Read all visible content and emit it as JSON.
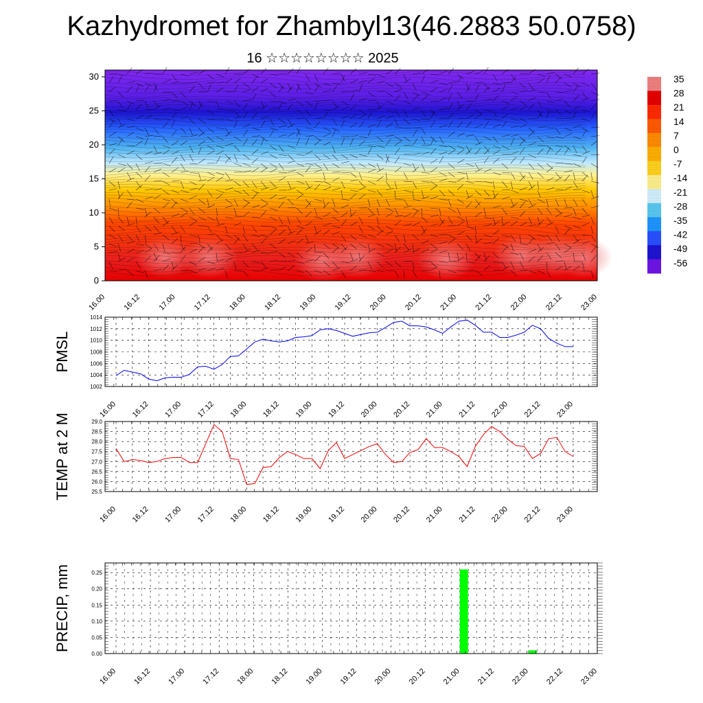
{
  "title": "Kazhydromet for Zhambyl13(46.2883 50.0758)",
  "subtitle": "16 ☆☆☆☆☆☆☆☆ 2025",
  "colors": {
    "pmsl_line": "#0000ff",
    "temp_line": "#ff0000",
    "precip_bar": "#00ff00",
    "grid": "#000000",
    "background": "#ffffff"
  },
  "chart_data": [
    {
      "type": "heatmap",
      "name": "cross-section",
      "x_ticks": [
        "16.00",
        "16.12",
        "17.00",
        "17.12",
        "18.00",
        "18.12",
        "19.00",
        "19.12",
        "20.00",
        "20.12",
        "21.00",
        "21.12",
        "22.00",
        "22.12",
        "23.00"
      ],
      "y_ticks": [
        "0",
        "5",
        "10",
        "15",
        "20",
        "25",
        "30"
      ],
      "ylim": [
        0,
        31
      ],
      "colorbar_labels": [
        "35",
        "28",
        "21",
        "14",
        "7",
        "0",
        "-7",
        "-14",
        "-21",
        "-28",
        "-35",
        "-42",
        "-49",
        "-56"
      ],
      "colorbar_colors": [
        "#f08080",
        "#e60000",
        "#ff2a00",
        "#ff5a00",
        "#ff8c00",
        "#ffb000",
        "#ffd21e",
        "#fff08c",
        "#d2f0ff",
        "#5ac8f0",
        "#1e96ff",
        "#2850ff",
        "#1e14d2",
        "#6e14e6"
      ],
      "description_bands": "temperature field with wind barbs"
    },
    {
      "type": "line",
      "name": "PMSL",
      "ylabel": "PMSL",
      "ylim": [
        1002,
        1014
      ],
      "y_ticks": [
        "1002",
        "1004",
        "1006",
        "1008",
        "1010",
        "1012",
        "1014"
      ],
      "x_ticks": [
        "16.00",
        "16.12",
        "17.00",
        "17.12",
        "18.00",
        "18.12",
        "19.00",
        "19.12",
        "20.00",
        "20.12",
        "21.00",
        "21.12",
        "22.00",
        "22.12",
        "23.00"
      ],
      "values": [
        1003.9,
        1004.8,
        1004.5,
        1004.2,
        1003.3,
        1003.0,
        1003.5,
        1003.6,
        1003.6,
        1004.1,
        1005.4,
        1005.5,
        1005.0,
        1005.8,
        1007.2,
        1007.3,
        1008.5,
        1009.7,
        1010.2,
        1009.9,
        1009.7,
        1009.9,
        1010.5,
        1010.6,
        1010.8,
        1011.8,
        1012.0,
        1011.7,
        1011.2,
        1010.7,
        1011.0,
        1011.3,
        1011.4,
        1012.2,
        1013.1,
        1013.3,
        1012.5,
        1012.5,
        1012.3,
        1011.8,
        1011.2,
        1012.3,
        1013.3,
        1013.5,
        1012.6,
        1011.4,
        1011.4,
        1010.5,
        1010.5,
        1010.9,
        1011.4,
        1012.6,
        1012.0,
        1010.3,
        1009.5,
        1008.9,
        1008.9
      ]
    },
    {
      "type": "line",
      "name": "TEMP at 2 M",
      "ylabel": "TEMP at 2 M",
      "ylim": [
        25.5,
        29.0
      ],
      "y_ticks": [
        "25.5",
        "26.0",
        "26.5",
        "27.0",
        "27.5",
        "28.0",
        "28.5",
        "29.0"
      ],
      "x_ticks": [
        "16.00",
        "16.12",
        "17.00",
        "17.12",
        "18.00",
        "18.12",
        "19.00",
        "19.12",
        "20.00",
        "20.12",
        "21.00",
        "21.12",
        "22.00",
        "22.12",
        "23.00"
      ],
      "values": [
        27.65,
        27.0,
        27.1,
        27.05,
        26.95,
        27.0,
        27.15,
        27.2,
        27.2,
        26.95,
        26.95,
        27.9,
        28.85,
        28.5,
        27.15,
        27.1,
        25.85,
        25.9,
        26.7,
        26.75,
        27.2,
        27.5,
        27.35,
        27.15,
        27.15,
        26.65,
        27.55,
        27.95,
        27.15,
        27.35,
        27.55,
        27.75,
        27.9,
        27.35,
        26.95,
        27.0,
        27.45,
        27.6,
        28.15,
        27.7,
        27.7,
        27.5,
        27.25,
        26.75,
        27.75,
        28.35,
        28.75,
        28.5,
        28.1,
        27.8,
        27.75,
        27.15,
        27.4,
        28.15,
        28.2,
        27.5,
        27.25
      ]
    },
    {
      "type": "bar",
      "name": "PRECIP, mm",
      "ylabel": "PRECIP, mm",
      "ylim": [
        0,
        0.28
      ],
      "y_ticks": [
        "0.00",
        "0.05",
        "0.10",
        "0.15",
        "0.20",
        "0.25"
      ],
      "x_ticks": [
        "16.00",
        "16.12",
        "17.00",
        "17.12",
        "18.00",
        "18.12",
        "19.00",
        "19.12",
        "20.00",
        "20.12",
        "21.00",
        "21.12",
        "22.00",
        "22.12",
        "23.00"
      ],
      "bars": [
        {
          "x": 21.06,
          "value": 0.26
        },
        {
          "x": 22.06,
          "value": 0.01
        }
      ]
    }
  ]
}
